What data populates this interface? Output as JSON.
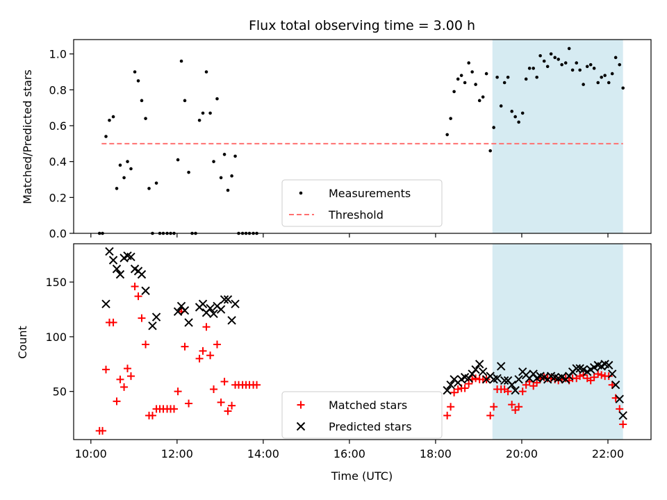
{
  "chart_data": {
    "type": "scatter",
    "title": "Flux total observing time = 3.00 h",
    "xlabel": "Time (UTC)",
    "x_unit": "hour of day (UTC)",
    "xlim": [
      9.6,
      23.0
    ],
    "x_ticks": [
      {
        "value": 10,
        "label": "10:00"
      },
      {
        "value": 12,
        "label": "12:00"
      },
      {
        "value": 14,
        "label": "14:00"
      },
      {
        "value": 16,
        "label": "16:00"
      },
      {
        "value": 18,
        "label": "18:00"
      },
      {
        "value": 20,
        "label": "20:00"
      },
      {
        "value": 22,
        "label": "22:00"
      }
    ],
    "highlight_span": {
      "x_start": 19.32,
      "x_end": 22.35,
      "color": "#add8e6"
    },
    "panels": [
      {
        "ylabel": "Matched/Predicted stars",
        "ylim": [
          0.0,
          1.08
        ],
        "y_ticks": [
          "0.0",
          "0.2",
          "0.4",
          "0.6",
          "0.8",
          "1.0"
        ],
        "y_tick_values": [
          0.0,
          0.2,
          0.4,
          0.6,
          0.8,
          1.0
        ],
        "legend": {
          "placement": "lower-center"
        },
        "series": [
          {
            "name": "Measurements",
            "marker": "dot",
            "color": "#000000",
            "x": [
              10.2,
              10.27,
              10.35,
              10.43,
              10.52,
              10.6,
              10.68,
              10.77,
              10.85,
              10.93,
              11.02,
              11.1,
              11.18,
              11.27,
              11.35,
              11.43,
              11.52,
              11.6,
              11.68,
              11.77,
              11.85,
              11.93,
              12.02,
              12.1,
              12.18,
              12.27,
              12.35,
              12.43,
              12.52,
              12.6,
              12.68,
              12.77,
              12.85,
              12.93,
              13.02,
              13.1,
              13.18,
              13.27,
              13.35,
              13.43,
              13.52,
              13.6,
              13.68,
              13.77,
              13.85,
              18.27,
              18.35,
              18.43,
              18.52,
              18.6,
              18.68,
              18.77,
              18.85,
              18.93,
              19.02,
              19.1,
              19.18,
              19.27,
              19.35,
              19.43,
              19.52,
              19.6,
              19.68,
              19.77,
              19.85,
              19.93,
              20.02,
              20.1,
              20.18,
              20.27,
              20.35,
              20.43,
              20.52,
              20.6,
              20.68,
              20.77,
              20.85,
              20.93,
              21.02,
              21.1,
              21.18,
              21.27,
              21.35,
              21.43,
              21.52,
              21.6,
              21.68,
              21.77,
              21.85,
              21.93,
              22.02,
              22.1,
              22.18,
              22.27,
              22.35
            ],
            "y": [
              0.0,
              0.0,
              0.54,
              0.63,
              0.65,
              0.25,
              0.38,
              0.31,
              0.4,
              0.36,
              0.9,
              0.85,
              0.74,
              0.64,
              0.25,
              0.0,
              0.28,
              0.0,
              0.0,
              0.0,
              0.0,
              0.0,
              0.41,
              0.96,
              0.74,
              0.34,
              0.0,
              0.0,
              0.63,
              0.67,
              0.9,
              0.67,
              0.4,
              0.75,
              0.31,
              0.44,
              0.24,
              0.32,
              0.43,
              0.0,
              0.0,
              0.0,
              0.0,
              0.0,
              0.0,
              0.55,
              0.64,
              0.79,
              0.86,
              0.88,
              0.84,
              0.95,
              0.9,
              0.83,
              0.74,
              0.76,
              0.89,
              0.46,
              0.59,
              0.87,
              0.71,
              0.84,
              0.87,
              0.68,
              0.65,
              0.62,
              0.67,
              0.86,
              0.92,
              0.92,
              0.87,
              0.99,
              0.96,
              0.93,
              1.0,
              0.98,
              0.97,
              0.94,
              0.95,
              1.03,
              0.91,
              0.95,
              0.91,
              0.83,
              0.93,
              0.94,
              0.92,
              0.84,
              0.87,
              0.88,
              0.84,
              0.89,
              0.98,
              0.94,
              0.81
            ]
          },
          {
            "name": "Threshold",
            "marker": "dashed-line",
            "color": "#ff6f6f",
            "x": [
              10.25,
              22.35
            ],
            "y": [
              0.5,
              0.5
            ]
          }
        ]
      },
      {
        "ylabel": "Count",
        "ylim": [
          6,
          185
        ],
        "y_ticks": [
          "50",
          "100",
          "150"
        ],
        "y_tick_values": [
          50,
          100,
          150
        ],
        "legend": {
          "placement": "lower-center"
        },
        "series": [
          {
            "name": "Matched stars",
            "marker": "plus",
            "color": "#ff0000",
            "x": [
              10.2,
              10.27,
              10.35,
              10.43,
              10.52,
              10.6,
              10.68,
              10.77,
              10.85,
              10.93,
              11.02,
              11.1,
              11.18,
              11.27,
              11.35,
              11.43,
              11.52,
              11.6,
              11.68,
              11.77,
              11.85,
              11.93,
              12.02,
              12.1,
              12.18,
              12.27,
              12.52,
              12.6,
              12.68,
              12.77,
              12.85,
              12.93,
              13.02,
              13.1,
              13.18,
              13.27,
              13.35,
              13.43,
              13.52,
              13.6,
              13.68,
              13.77,
              13.85,
              18.27,
              18.35,
              18.43,
              18.52,
              18.6,
              18.68,
              18.77,
              18.85,
              18.93,
              19.02,
              19.1,
              19.18,
              19.27,
              19.35,
              19.43,
              19.52,
              19.6,
              19.68,
              19.77,
              19.85,
              19.93,
              20.02,
              20.1,
              20.18,
              20.27,
              20.35,
              20.43,
              20.52,
              20.6,
              20.68,
              20.77,
              20.85,
              20.93,
              21.02,
              21.1,
              21.18,
              21.27,
              21.35,
              21.43,
              21.52,
              21.6,
              21.68,
              21.77,
              21.85,
              21.93,
              22.02,
              22.1,
              22.18,
              22.27,
              22.35
            ],
            "y": [
              14,
              14,
              70,
              113,
              113,
              41,
              61,
              54,
              71,
              64,
              146,
              137,
              117,
              93,
              28,
              28,
              34,
              34,
              34,
              34,
              34,
              34,
              50,
              123,
              91,
              39,
              80,
              87,
              109,
              83,
              52,
              93,
              40,
              59,
              32,
              37,
              56,
              56,
              56,
              56,
              56,
              56,
              56,
              28,
              36,
              49,
              52,
              53,
              53,
              57,
              61,
              62,
              61,
              61,
              61,
              28,
              36,
              52,
              52,
              52,
              50,
              38,
              33,
              36,
              50,
              56,
              59,
              55,
              58,
              62,
              63,
              62,
              62,
              61,
              60,
              61,
              62,
              60,
              62,
              62,
              64,
              65,
              62,
              60,
              63,
              66,
              65,
              64,
              64,
              56,
              44,
              34,
              20
            ]
          },
          {
            "name": "Predicted stars",
            "marker": "x",
            "color": "#000000",
            "x": [
              10.35,
              10.43,
              10.52,
              10.6,
              10.68,
              10.77,
              10.85,
              10.93,
              11.02,
              11.1,
              11.18,
              11.27,
              11.43,
              11.52,
              12.02,
              12.1,
              12.18,
              12.27,
              12.52,
              12.6,
              12.68,
              12.77,
              12.85,
              12.93,
              13.02,
              13.1,
              13.18,
              13.27,
              13.35,
              18.27,
              18.35,
              18.43,
              18.52,
              18.6,
              18.68,
              18.77,
              18.85,
              18.93,
              19.02,
              19.1,
              19.18,
              19.27,
              19.35,
              19.43,
              19.52,
              19.6,
              19.68,
              19.77,
              19.85,
              19.93,
              20.02,
              20.1,
              20.18,
              20.27,
              20.35,
              20.43,
              20.52,
              20.6,
              20.68,
              20.77,
              20.85,
              20.93,
              21.02,
              21.1,
              21.18,
              21.27,
              21.35,
              21.43,
              21.52,
              21.6,
              21.68,
              21.77,
              21.85,
              21.93,
              22.02,
              22.1,
              22.18,
              22.27,
              22.35
            ],
            "y": [
              130,
              178,
              170,
              162,
              157,
              172,
              174,
              173,
              162,
              160,
              157,
              142,
              110,
              118,
              123,
              128,
              124,
              113,
              127,
              130,
              122,
              126,
              121,
              128,
              125,
              134,
              134,
              115,
              130,
              51,
              56,
              61,
              58,
              61,
              63,
              62,
              66,
              70,
              75,
              68,
              61,
              64,
              61,
              62,
              73,
              60,
              60,
              56,
              51,
              61,
              68,
              65,
              62,
              66,
              62,
              64,
              63,
              61,
              64,
              63,
              62,
              63,
              61,
              64,
              68,
              71,
              71,
              70,
              68,
              70,
              72,
              74,
              73,
              75,
              74,
              66,
              56,
              43,
              28
            ]
          }
        ]
      }
    ]
  }
}
